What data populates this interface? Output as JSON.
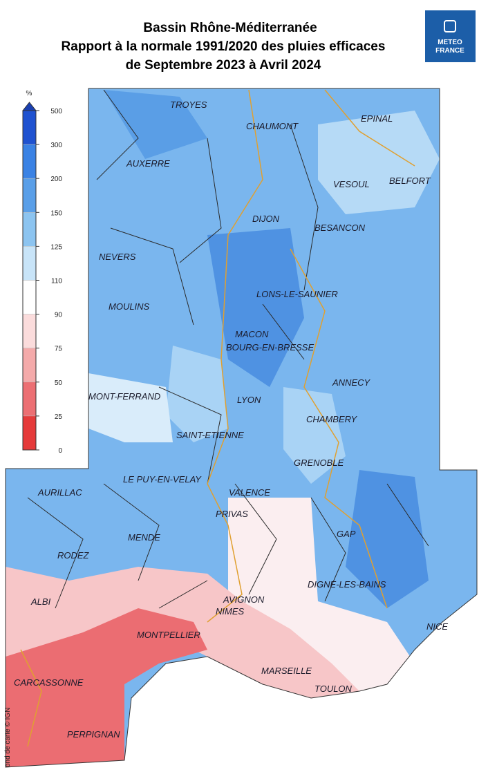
{
  "header": {
    "title_lines": [
      "Bassin Rhône-Méditerranée",
      "Rapport à la normale 1991/2020 des pluies efficaces",
      "de Septembre 2023 à Avril 2024"
    ]
  },
  "logo": {
    "lines": [
      "METEO",
      "FRANCE"
    ]
  },
  "legend": {
    "unit": "%",
    "ticks": [
      "500",
      "300",
      "200",
      "150",
      "125",
      "110",
      "90",
      "75",
      "50",
      "25",
      "0"
    ]
  },
  "cities": [
    "TROYES",
    "CHAUMONT",
    "EPINAL",
    "AUXERRE",
    "VESOUL",
    "BELFORT",
    "DIJON",
    "BESANCON",
    "NEVERS",
    "LONS-LE-SAUNIER",
    "MOULINS",
    "MACON",
    "BOURG-EN-BRESSE",
    "ANNECY",
    "MONT-FERRAND",
    "LYON",
    "CHAMBERY",
    "SAINT-ETIENNE",
    "GRENOBLE",
    "LE PUY-EN-VELAY",
    "AURILLAC",
    "VALENCE",
    "PRIVAS",
    "GAP",
    "MENDE",
    "RODEZ",
    "DIGNE-LES-BAINS",
    "ALBI",
    "AVIGNON",
    "NIMES",
    "NICE",
    "MONTPELLIER",
    "MARSEILLE",
    "CARCASSONNE",
    "TOULON",
    "PERPIGNAN"
  ],
  "credit": "ond de carte © IGN"
}
